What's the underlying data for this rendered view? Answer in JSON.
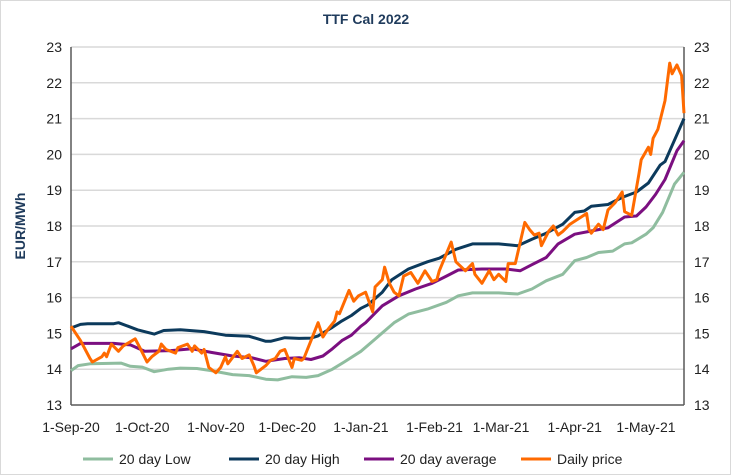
{
  "chart_data": {
    "type": "line",
    "title": "TTF Cal 2022",
    "ylabel": "EUR/MWh",
    "xlabel": "",
    "ylim": [
      13,
      23
    ],
    "xlim": [
      "2020-09-01",
      "2021-05-17"
    ],
    "yticks": [
      13,
      14,
      15,
      16,
      17,
      18,
      19,
      20,
      21,
      22,
      23
    ],
    "secondary_y_axis": true,
    "grid": "horizontal",
    "legend": "bottom",
    "xticks": [
      {
        "date": "2020-09-01",
        "label": "1-Sep-20"
      },
      {
        "date": "2020-10-01",
        "label": "1-Oct-20"
      },
      {
        "date": "2020-11-01",
        "label": "1-Nov-20"
      },
      {
        "date": "2020-12-01",
        "label": "1-Dec-20"
      },
      {
        "date": "2021-01-01",
        "label": "1-Jan-21"
      },
      {
        "date": "2021-02-01",
        "label": "1-Feb-21"
      },
      {
        "date": "2021-03-01",
        "label": "1-Mar-21"
      },
      {
        "date": "2021-04-01",
        "label": "1-Apr-21"
      },
      {
        "date": "2021-05-01",
        "label": "1-May-21"
      }
    ],
    "series": [
      {
        "name": "20 day Low",
        "color": "#8fbd9f",
        "points": [
          [
            "2020-09-01",
            13.96
          ],
          [
            "2020-09-04",
            14.1
          ],
          [
            "2020-09-09",
            14.15
          ],
          [
            "2020-09-22",
            14.17
          ],
          [
            "2020-09-26",
            14.08
          ],
          [
            "2020-10-01",
            14.06
          ],
          [
            "2020-10-06",
            13.93
          ],
          [
            "2020-10-12",
            14.0
          ],
          [
            "2020-10-17",
            14.03
          ],
          [
            "2020-10-24",
            14.02
          ],
          [
            "2020-10-30",
            13.96
          ],
          [
            "2020-11-08",
            13.85
          ],
          [
            "2020-11-15",
            13.82
          ],
          [
            "2020-11-22",
            13.72
          ],
          [
            "2020-11-27",
            13.7
          ],
          [
            "2020-12-03",
            13.79
          ],
          [
            "2020-12-09",
            13.77
          ],
          [
            "2020-12-14",
            13.82
          ],
          [
            "2020-12-20",
            14.0
          ],
          [
            "2020-12-25",
            14.2
          ],
          [
            "2021-01-01",
            14.5
          ],
          [
            "2021-01-07",
            14.84
          ],
          [
            "2021-01-15",
            15.3
          ],
          [
            "2021-01-21",
            15.54
          ],
          [
            "2021-01-29",
            15.68
          ],
          [
            "2021-02-06",
            15.87
          ],
          [
            "2021-02-11",
            16.05
          ],
          [
            "2021-02-17",
            16.13
          ],
          [
            "2021-02-28",
            16.13
          ],
          [
            "2021-03-08",
            16.1
          ],
          [
            "2021-03-14",
            16.24
          ],
          [
            "2021-03-20",
            16.47
          ],
          [
            "2021-03-27",
            16.65
          ],
          [
            "2021-04-01",
            17.03
          ],
          [
            "2021-04-06",
            17.12
          ],
          [
            "2021-04-11",
            17.26
          ],
          [
            "2021-04-17",
            17.3
          ],
          [
            "2021-04-22",
            17.5
          ],
          [
            "2021-04-25",
            17.53
          ],
          [
            "2021-05-01",
            17.77
          ],
          [
            "2021-05-04",
            17.95
          ],
          [
            "2021-05-08",
            18.38
          ],
          [
            "2021-05-13",
            19.17
          ],
          [
            "2021-05-17",
            19.5
          ]
        ]
      },
      {
        "name": "20 day High",
        "color": "#0c3a5c",
        "points": [
          [
            "2020-09-01",
            15.15
          ],
          [
            "2020-09-05",
            15.25
          ],
          [
            "2020-09-08",
            15.27
          ],
          [
            "2020-09-19",
            15.27
          ],
          [
            "2020-09-21",
            15.3
          ],
          [
            "2020-09-25",
            15.2
          ],
          [
            "2020-09-29",
            15.1
          ],
          [
            "2020-10-06",
            14.98
          ],
          [
            "2020-10-10",
            15.08
          ],
          [
            "2020-10-17",
            15.1
          ],
          [
            "2020-10-27",
            15.05
          ],
          [
            "2020-11-05",
            14.95
          ],
          [
            "2020-11-15",
            14.92
          ],
          [
            "2020-11-22",
            14.78
          ],
          [
            "2020-11-24",
            14.78
          ],
          [
            "2020-11-30",
            14.88
          ],
          [
            "2020-12-06",
            14.86
          ],
          [
            "2020-12-11",
            14.87
          ],
          [
            "2020-12-14",
            14.93
          ],
          [
            "2020-12-20",
            15.17
          ],
          [
            "2020-12-24",
            15.35
          ],
          [
            "2020-12-28",
            15.5
          ],
          [
            "2021-01-01",
            15.7
          ],
          [
            "2021-01-04",
            15.8
          ],
          [
            "2021-01-10",
            16.15
          ],
          [
            "2021-01-14",
            16.5
          ],
          [
            "2021-01-21",
            16.8
          ],
          [
            "2021-01-29",
            17.0
          ],
          [
            "2021-02-03",
            17.1
          ],
          [
            "2021-02-10",
            17.35
          ],
          [
            "2021-02-17",
            17.5
          ],
          [
            "2021-02-28",
            17.5
          ],
          [
            "2021-03-08",
            17.45
          ],
          [
            "2021-03-14",
            17.63
          ],
          [
            "2021-03-20",
            17.8
          ],
          [
            "2021-03-27",
            18.05
          ],
          [
            "2021-04-01",
            18.38
          ],
          [
            "2021-04-05",
            18.42
          ],
          [
            "2021-04-08",
            18.55
          ],
          [
            "2021-04-15",
            18.6
          ],
          [
            "2021-04-21",
            18.8
          ],
          [
            "2021-04-27",
            18.95
          ],
          [
            "2021-05-02",
            19.2
          ],
          [
            "2021-05-07",
            19.7
          ],
          [
            "2021-05-09",
            19.8
          ],
          [
            "2021-05-14",
            20.55
          ],
          [
            "2021-05-17",
            21.0
          ]
        ]
      },
      {
        "name": "20 day average",
        "color": "#7b0f80",
        "points": [
          [
            "2020-09-01",
            14.57
          ],
          [
            "2020-09-05",
            14.72
          ],
          [
            "2020-09-19",
            14.72
          ],
          [
            "2020-09-26",
            14.68
          ],
          [
            "2020-10-02",
            14.5
          ],
          [
            "2020-10-13",
            14.52
          ],
          [
            "2020-10-22",
            14.57
          ],
          [
            "2020-10-30",
            14.47
          ],
          [
            "2020-11-08",
            14.37
          ],
          [
            "2020-11-16",
            14.32
          ],
          [
            "2020-11-22",
            14.22
          ],
          [
            "2020-11-30",
            14.3
          ],
          [
            "2020-12-06",
            14.32
          ],
          [
            "2020-12-11",
            14.27
          ],
          [
            "2020-12-16",
            14.37
          ],
          [
            "2020-12-20",
            14.57
          ],
          [
            "2020-12-24",
            14.8
          ],
          [
            "2020-12-28",
            14.95
          ],
          [
            "2021-01-01",
            15.2
          ],
          [
            "2021-01-03",
            15.3
          ],
          [
            "2021-01-10",
            15.77
          ],
          [
            "2021-01-17",
            16.05
          ],
          [
            "2021-01-24",
            16.24
          ],
          [
            "2021-01-31",
            16.4
          ],
          [
            "2021-02-06",
            16.6
          ],
          [
            "2021-02-11",
            16.77
          ],
          [
            "2021-02-21",
            16.8
          ],
          [
            "2021-03-03",
            16.8
          ],
          [
            "2021-03-09",
            16.75
          ],
          [
            "2021-03-14",
            16.92
          ],
          [
            "2021-03-20",
            17.12
          ],
          [
            "2021-03-25",
            17.5
          ],
          [
            "2021-04-01",
            17.77
          ],
          [
            "2021-04-08",
            17.86
          ],
          [
            "2021-04-15",
            17.95
          ],
          [
            "2021-04-22",
            18.25
          ],
          [
            "2021-04-27",
            18.28
          ],
          [
            "2021-05-01",
            18.53
          ],
          [
            "2021-05-05",
            18.88
          ],
          [
            "2021-05-09",
            19.3
          ],
          [
            "2021-05-14",
            20.1
          ],
          [
            "2021-05-17",
            20.38
          ]
        ]
      },
      {
        "name": "Daily price",
        "color": "#ff6a00",
        "points": [
          [
            "2020-09-01",
            15.2
          ],
          [
            "2020-09-05",
            14.8
          ],
          [
            "2020-09-09",
            14.3
          ],
          [
            "2020-09-10",
            14.2
          ],
          [
            "2020-09-14",
            14.35
          ],
          [
            "2020-09-15",
            14.45
          ],
          [
            "2020-09-16",
            14.35
          ],
          [
            "2020-09-18",
            14.7
          ],
          [
            "2020-09-21",
            14.5
          ],
          [
            "2020-09-23",
            14.65
          ],
          [
            "2020-09-28",
            14.85
          ],
          [
            "2020-09-30",
            14.6
          ],
          [
            "2020-10-03",
            14.2
          ],
          [
            "2020-10-05",
            14.35
          ],
          [
            "2020-10-08",
            14.5
          ],
          [
            "2020-10-09",
            14.7
          ],
          [
            "2020-10-11",
            14.55
          ],
          [
            "2020-10-15",
            14.45
          ],
          [
            "2020-10-16",
            14.6
          ],
          [
            "2020-10-20",
            14.7
          ],
          [
            "2020-10-22",
            14.5
          ],
          [
            "2020-10-23",
            14.65
          ],
          [
            "2020-10-26",
            14.45
          ],
          [
            "2020-10-27",
            14.55
          ],
          [
            "2020-10-29",
            14.05
          ],
          [
            "2020-11-01",
            13.9
          ],
          [
            "2020-11-03",
            14.05
          ],
          [
            "2020-11-05",
            14.35
          ],
          [
            "2020-11-06",
            14.15
          ],
          [
            "2020-11-10",
            14.5
          ],
          [
            "2020-11-12",
            14.3
          ],
          [
            "2020-11-15",
            14.4
          ],
          [
            "2020-11-17",
            14.1
          ],
          [
            "2020-11-18",
            13.9
          ],
          [
            "2020-11-22",
            14.1
          ],
          [
            "2020-11-24",
            14.25
          ],
          [
            "2020-11-26",
            14.3
          ],
          [
            "2020-11-28",
            14.5
          ],
          [
            "2020-11-30",
            14.55
          ],
          [
            "2020-12-03",
            14.05
          ],
          [
            "2020-12-04",
            14.3
          ],
          [
            "2020-12-07",
            14.25
          ],
          [
            "2020-12-08",
            14.3
          ],
          [
            "2020-12-11",
            14.8
          ],
          [
            "2020-12-14",
            15.3
          ],
          [
            "2020-12-16",
            14.9
          ],
          [
            "2020-12-18",
            15.1
          ],
          [
            "2020-12-21",
            15.35
          ],
          [
            "2020-12-22",
            15.6
          ],
          [
            "2020-12-23",
            15.55
          ],
          [
            "2020-12-27",
            16.2
          ],
          [
            "2020-12-29",
            15.9
          ],
          [
            "2020-12-31",
            16.05
          ],
          [
            "2021-01-03",
            16.15
          ],
          [
            "2021-01-06",
            15.6
          ],
          [
            "2021-01-07",
            16.3
          ],
          [
            "2021-01-10",
            16.5
          ],
          [
            "2021-01-11",
            16.85
          ],
          [
            "2021-01-13",
            16.4
          ],
          [
            "2021-01-15",
            16.15
          ],
          [
            "2021-01-17",
            16.05
          ],
          [
            "2021-01-19",
            16.6
          ],
          [
            "2021-01-22",
            16.7
          ],
          [
            "2021-01-25",
            16.4
          ],
          [
            "2021-01-28",
            16.75
          ],
          [
            "2021-01-31",
            16.45
          ],
          [
            "2021-02-02",
            16.5
          ],
          [
            "2021-02-03",
            16.75
          ],
          [
            "2021-02-08",
            17.55
          ],
          [
            "2021-02-10",
            17.0
          ],
          [
            "2021-02-14",
            16.75
          ],
          [
            "2021-02-17",
            16.95
          ],
          [
            "2021-02-18",
            16.65
          ],
          [
            "2021-02-21",
            16.4
          ],
          [
            "2021-02-24",
            16.75
          ],
          [
            "2021-02-26",
            16.5
          ],
          [
            "2021-02-28",
            16.65
          ],
          [
            "2021-03-03",
            16.45
          ],
          [
            "2021-03-04",
            16.95
          ],
          [
            "2021-03-07",
            16.95
          ],
          [
            "2021-03-11",
            18.1
          ],
          [
            "2021-03-13",
            17.9
          ],
          [
            "2021-03-15",
            17.75
          ],
          [
            "2021-03-17",
            17.8
          ],
          [
            "2021-03-18",
            17.45
          ],
          [
            "2021-03-21",
            17.85
          ],
          [
            "2021-03-23",
            18.0
          ],
          [
            "2021-03-25",
            17.75
          ],
          [
            "2021-03-27",
            17.85
          ],
          [
            "2021-03-30",
            18.05
          ],
          [
            "2021-04-06",
            18.35
          ],
          [
            "2021-04-07",
            17.9
          ],
          [
            "2021-04-08",
            17.8
          ],
          [
            "2021-04-11",
            18.05
          ],
          [
            "2021-04-13",
            17.9
          ],
          [
            "2021-04-15",
            18.45
          ],
          [
            "2021-04-18",
            18.65
          ],
          [
            "2021-04-21",
            18.95
          ],
          [
            "2021-04-22",
            18.4
          ],
          [
            "2021-04-25",
            18.3
          ],
          [
            "2021-04-28",
            19.45
          ],
          [
            "2021-04-29",
            19.85
          ],
          [
            "2021-05-02",
            20.2
          ],
          [
            "2021-05-03",
            20.0
          ],
          [
            "2021-05-04",
            20.45
          ],
          [
            "2021-05-06",
            20.7
          ],
          [
            "2021-05-09",
            21.5
          ],
          [
            "2021-05-11",
            22.55
          ],
          [
            "2021-05-12",
            22.25
          ],
          [
            "2021-05-14",
            22.5
          ],
          [
            "2021-05-16",
            22.2
          ],
          [
            "2021-05-17",
            21.15
          ]
        ]
      }
    ]
  }
}
